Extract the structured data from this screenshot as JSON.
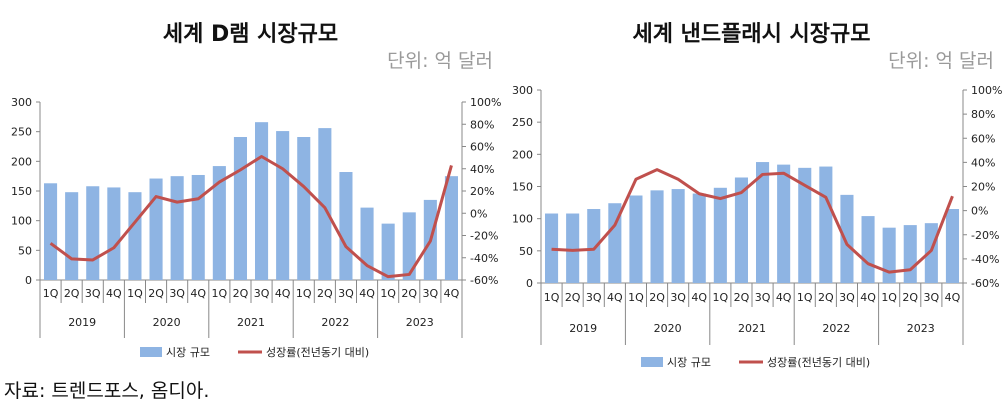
{
  "chart_data": [
    {
      "type": "bar",
      "title": "세계 D램 시장규모",
      "unit": "단위: 억 달러",
      "categories": [
        "1Q",
        "2Q",
        "3Q",
        "4Q",
        "1Q",
        "2Q",
        "3Q",
        "4Q",
        "1Q",
        "2Q",
        "3Q",
        "4Q",
        "1Q",
        "2Q",
        "3Q",
        "4Q",
        "1Q",
        "2Q",
        "3Q",
        "4Q"
      ],
      "year_groups": [
        "2019",
        "2020",
        "2021",
        "2022",
        "2023"
      ],
      "y_left_ticks": [
        "0",
        "50",
        "100",
        "150",
        "200",
        "250",
        "300"
      ],
      "y_right_ticks": [
        "-60%",
        "-40%",
        "-20%",
        "0%",
        "20%",
        "40%",
        "60%",
        "80%",
        "100%"
      ],
      "ylim": [
        0,
        300
      ],
      "y2lim": [
        -60,
        100
      ],
      "series": [
        {
          "name": "시장 규모",
          "type": "bar",
          "color": "#8eb4e3",
          "values": [
            163,
            148,
            158,
            156,
            148,
            171,
            175,
            177,
            192,
            241,
            266,
            251,
            241,
            256,
            182,
            122,
            95,
            114,
            135,
            175
          ]
        },
        {
          "name": "성장률(전년동기 대비)",
          "type": "line",
          "color": "#c0504d",
          "values": [
            -27,
            -41,
            -42,
            -31,
            -8,
            15,
            10,
            13,
            28,
            39,
            51,
            40,
            24,
            5,
            -30,
            -47,
            -57,
            -55,
            -25,
            43
          ]
        }
      ]
    },
    {
      "type": "bar",
      "title": "세계 낸드플래시 시장규모",
      "unit": "단위: 억 달러",
      "categories": [
        "1Q",
        "2Q",
        "3Q",
        "4Q",
        "1Q",
        "2Q",
        "3Q",
        "4Q",
        "1Q",
        "2Q",
        "3Q",
        "4Q",
        "1Q",
        "2Q",
        "3Q",
        "4Q",
        "1Q",
        "2Q",
        "3Q",
        "4Q"
      ],
      "year_groups": [
        "2019",
        "2020",
        "2021",
        "2022",
        "2023"
      ],
      "y_left_ticks": [
        "0",
        "50",
        "100",
        "150",
        "200",
        "250",
        "300"
      ],
      "y_right_ticks": [
        "-60%",
        "-40%",
        "-20%",
        "0%",
        "20%",
        "40%",
        "60%",
        "80%",
        "100%"
      ],
      "ylim": [
        0,
        300
      ],
      "y2lim": [
        -60,
        100
      ],
      "series": [
        {
          "name": "시장 규모",
          "type": "bar",
          "color": "#8eb4e3",
          "values": [
            108,
            108,
            115,
            124,
            136,
            144,
            146,
            139,
            148,
            164,
            188,
            184,
            179,
            181,
            137,
            104,
            86,
            90,
            93,
            115
          ]
        },
        {
          "name": "성장률(전년동기 대비)",
          "type": "line",
          "color": "#c0504d",
          "values": [
            -32,
            -33,
            -32,
            -12,
            26,
            34,
            26,
            14,
            10,
            15,
            30,
            31,
            21,
            11,
            -28,
            -44,
            -51,
            -49,
            -33,
            12
          ]
        }
      ]
    }
  ],
  "source": "자료: 트렌드포스, 옴디아."
}
